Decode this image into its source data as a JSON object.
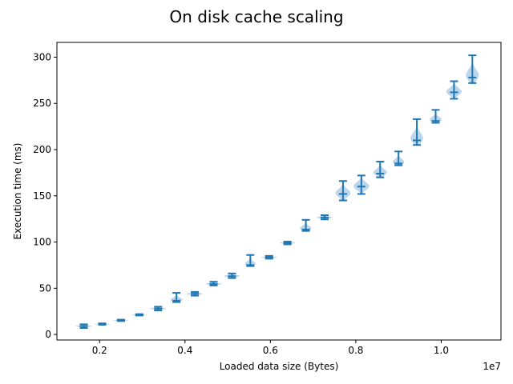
{
  "chart_data": {
    "type": "violin",
    "title": "On disk cache scaling",
    "xlabel": "Loaded data size (Bytes)",
    "ylabel": "Execution time (ms)",
    "x_offset_label": "1e7",
    "xlim": [
      0.1,
      1.14
    ],
    "ylim": [
      -6,
      316
    ],
    "x_ticks": [
      0.2,
      0.4,
      0.6,
      0.8,
      1.0
    ],
    "x_tick_labels": [
      "0.2",
      "0.4",
      "0.6",
      "0.8",
      "1.0"
    ],
    "y_ticks": [
      0,
      50,
      100,
      150,
      200,
      250,
      300
    ],
    "y_tick_labels": [
      "0",
      "50",
      "100",
      "150",
      "200",
      "250",
      "300"
    ],
    "grid": false,
    "colors": {
      "line": "#1f77b4",
      "fill": "#a6c8e6"
    },
    "violins": [
      {
        "x": 0.163,
        "min": 7,
        "max": 11,
        "median": 9
      },
      {
        "x": 0.206,
        "min": 10.5,
        "max": 12,
        "median": 11.2
      },
      {
        "x": 0.25,
        "min": 14.5,
        "max": 16,
        "median": 15.2
      },
      {
        "x": 0.293,
        "min": 20.5,
        "max": 22,
        "median": 21.2
      },
      {
        "x": 0.337,
        "min": 26,
        "max": 30,
        "median": 28
      },
      {
        "x": 0.38,
        "min": 35,
        "max": 45,
        "median": 36.5
      },
      {
        "x": 0.423,
        "min": 42,
        "max": 46,
        "median": 44
      },
      {
        "x": 0.467,
        "min": 53,
        "max": 57,
        "median": 54.5
      },
      {
        "x": 0.51,
        "min": 61,
        "max": 66,
        "median": 63
      },
      {
        "x": 0.553,
        "min": 74,
        "max": 86,
        "median": 75
      },
      {
        "x": 0.597,
        "min": 82,
        "max": 85,
        "median": 83.5
      },
      {
        "x": 0.64,
        "min": 97.5,
        "max": 100.5,
        "median": 99
      },
      {
        "x": 0.683,
        "min": 112,
        "max": 124,
        "median": 113.5
      },
      {
        "x": 0.727,
        "min": 124.5,
        "max": 129,
        "median": 126.5
      },
      {
        "x": 0.77,
        "min": 145,
        "max": 166,
        "median": 152
      },
      {
        "x": 0.813,
        "min": 152,
        "max": 172,
        "median": 160
      },
      {
        "x": 0.857,
        "min": 170,
        "max": 187,
        "median": 174
      },
      {
        "x": 0.9,
        "min": 183,
        "max": 198,
        "median": 185
      },
      {
        "x": 0.943,
        "min": 205,
        "max": 233,
        "median": 210
      },
      {
        "x": 0.987,
        "min": 229,
        "max": 243,
        "median": 231
      },
      {
        "x": 1.03,
        "min": 255,
        "max": 274,
        "median": 262
      },
      {
        "x": 1.073,
        "min": 272,
        "max": 302,
        "median": 278
      }
    ]
  }
}
